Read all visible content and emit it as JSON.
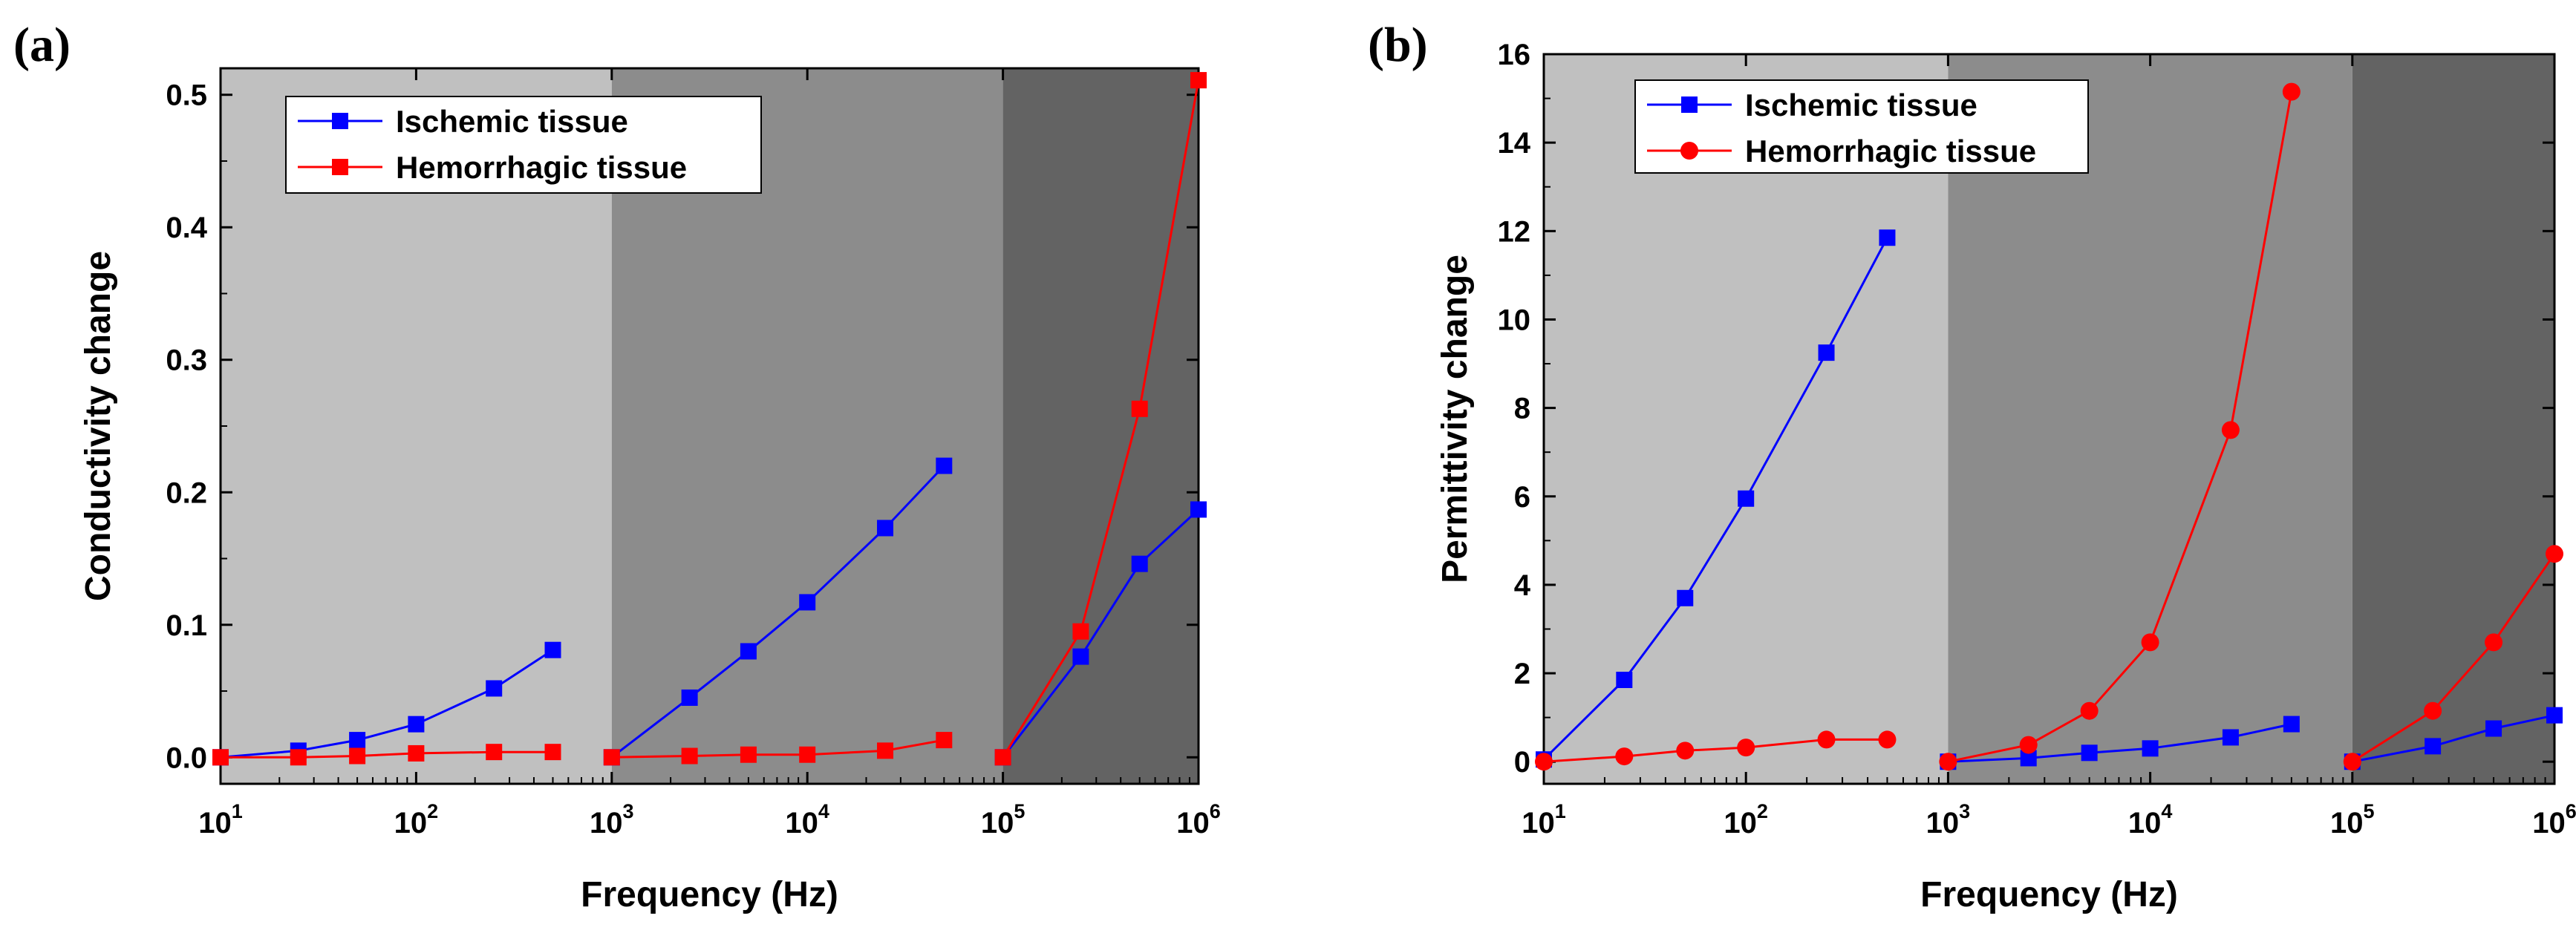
{
  "chart_data": [
    {
      "type": "line",
      "panel_label": "(a)",
      "xlabel": "Frequency (Hz)",
      "ylabel": "Conductivity change",
      "xscale": "log",
      "xlim": [
        10,
        1000000
      ],
      "ylim": [
        -0.02,
        0.52
      ],
      "x_tick_labels": [
        {
          "base": "10",
          "exp": "1"
        },
        {
          "base": "10",
          "exp": "2"
        },
        {
          "base": "10",
          "exp": "3"
        },
        {
          "base": "10",
          "exp": "4"
        },
        {
          "base": "10",
          "exp": "5"
        },
        {
          "base": "10",
          "exp": "6"
        }
      ],
      "y_tick_labels": [
        "0.0",
        "0.1",
        "0.2",
        "0.3",
        "0.4",
        "0.5"
      ],
      "shaded_regions": [
        {
          "from": 10,
          "to": 1000,
          "color": "#c0c0c0"
        },
        {
          "from": 1000,
          "to": 100000,
          "color": "#8c8c8c"
        },
        {
          "from": 100000,
          "to": 1000000,
          "color": "#636363"
        }
      ],
      "legend": {
        "placement": "top-left"
      },
      "series": [
        {
          "name": "Ischemic tissue",
          "color": "#0000ff",
          "marker": "square",
          "segments": [
            {
              "x": [
                10,
                25,
                50,
                100,
                250,
                500
              ],
              "y": [
                0.0,
                0.005,
                0.013,
                0.025,
                0.052,
                0.081
              ]
            },
            {
              "x": [
                1000,
                2500,
                5000,
                10000,
                25000,
                50000
              ],
              "y": [
                0.0,
                0.045,
                0.08,
                0.117,
                0.173,
                0.22
              ]
            },
            {
              "x": [
                100000,
                250000,
                500000,
                1000000
              ],
              "y": [
                0.0,
                0.076,
                0.146,
                0.187
              ]
            }
          ]
        },
        {
          "name": "Hemorrhagic tissue",
          "color": "#ff0000",
          "marker": "square",
          "segments": [
            {
              "x": [
                10,
                25,
                50,
                100,
                250,
                500
              ],
              "y": [
                0.0,
                0.0,
                0.001,
                0.003,
                0.004,
                0.004
              ]
            },
            {
              "x": [
                1000,
                2500,
                5000,
                10000,
                25000,
                50000
              ],
              "y": [
                0.0,
                0.001,
                0.002,
                0.002,
                0.005,
                0.013
              ]
            },
            {
              "x": [
                100000,
                250000,
                500000,
                1000000
              ],
              "y": [
                0.0,
                0.095,
                0.263,
                0.511
              ]
            }
          ]
        }
      ]
    },
    {
      "type": "line",
      "panel_label": "(b)",
      "xlabel": "Frequency (Hz)",
      "ylabel": "Permittivity change",
      "xscale": "log",
      "xlim": [
        10,
        1000000
      ],
      "ylim": [
        -0.5,
        16
      ],
      "x_tick_labels": [
        {
          "base": "10",
          "exp": "1"
        },
        {
          "base": "10",
          "exp": "2"
        },
        {
          "base": "10",
          "exp": "3"
        },
        {
          "base": "10",
          "exp": "4"
        },
        {
          "base": "10",
          "exp": "5"
        },
        {
          "base": "10",
          "exp": "6"
        }
      ],
      "y_tick_labels": [
        "0",
        "2",
        "4",
        "6",
        "8",
        "10",
        "12",
        "14",
        "16"
      ],
      "shaded_regions": [
        {
          "from": 10,
          "to": 1000,
          "color": "#c0c0c0"
        },
        {
          "from": 1000,
          "to": 100000,
          "color": "#8c8c8c"
        },
        {
          "from": 100000,
          "to": 1000000,
          "color": "#636363"
        }
      ],
      "legend": {
        "placement": "top-left"
      },
      "series": [
        {
          "name": "Ischemic tissue",
          "color": "#0000ff",
          "marker": "square",
          "segments": [
            {
              "x": [
                10,
                25,
                50,
                100,
                250,
                500
              ],
              "y": [
                0.05,
                1.85,
                3.7,
                5.95,
                9.25,
                11.85
              ]
            },
            {
              "x": [
                1000,
                2500,
                5000,
                10000,
                25000,
                50000
              ],
              "y": [
                0.0,
                0.08,
                0.2,
                0.3,
                0.55,
                0.85
              ]
            },
            {
              "x": [
                100000,
                250000,
                500000,
                1000000
              ],
              "y": [
                0.0,
                0.35,
                0.75,
                1.05
              ]
            }
          ]
        },
        {
          "name": "Hemorrhagic tissue",
          "color": "#ff0000",
          "marker": "circle",
          "segments": [
            {
              "x": [
                10,
                25,
                50,
                100,
                250,
                500
              ],
              "y": [
                0.0,
                0.12,
                0.25,
                0.32,
                0.5,
                0.5
              ]
            },
            {
              "x": [
                1000,
                2500,
                5000,
                10000,
                25000,
                50000
              ],
              "y": [
                0.0,
                0.38,
                1.15,
                2.7,
                7.5,
                15.15
              ]
            },
            {
              "x": [
                100000,
                250000,
                500000,
                1000000
              ],
              "y": [
                0.0,
                1.15,
                2.7,
                4.7
              ]
            }
          ]
        }
      ]
    }
  ]
}
